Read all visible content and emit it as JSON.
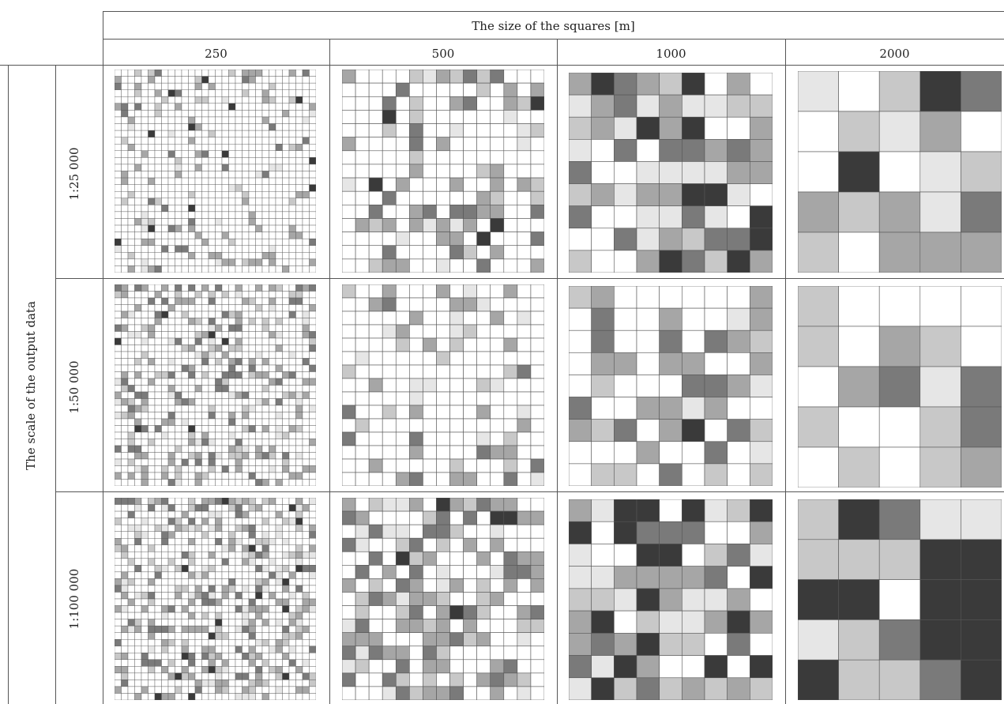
{
  "header": {
    "top_title": "The size of the squares [m]",
    "columns": [
      "250",
      "500",
      "1000",
      "2000"
    ]
  },
  "side": {
    "title": "The scale of the output data",
    "rows": [
      "1:25 000",
      "1:50 000",
      "1:100 000"
    ]
  },
  "grids": [
    {
      "row": "1:25 000",
      "col": "250",
      "n": 30,
      "seed": 11,
      "density": 0.18,
      "dark": 0.04
    },
    {
      "row": "1:25 000",
      "col": "500",
      "n": 15,
      "seed": 23,
      "density": 0.3,
      "dark": 0.04
    },
    {
      "row": "1:25 000",
      "col": "1000",
      "n": 9,
      "seed": 37,
      "density": 0.75,
      "dark": 0.2
    },
    {
      "row": "1:25 000",
      "col": "2000",
      "n": 5,
      "seed": 41,
      "density": 0.85,
      "dark": 0.2
    },
    {
      "row": "1:50 000",
      "col": "250",
      "n": 30,
      "seed": 53,
      "density": 0.3,
      "dark": 0.05
    },
    {
      "row": "1:50 000",
      "col": "500",
      "n": 15,
      "seed": 61,
      "density": 0.3,
      "dark": 0.03
    },
    {
      "row": "1:50 000",
      "col": "1000",
      "n": 9,
      "seed": 71,
      "density": 0.55,
      "dark": 0.03
    },
    {
      "row": "1:50 000",
      "col": "2000",
      "n": 5,
      "seed": 83,
      "density": 0.6,
      "dark": 0.0
    },
    {
      "row": "1:100 000",
      "col": "250",
      "n": 30,
      "seed": 97,
      "density": 0.38,
      "dark": 0.06
    },
    {
      "row": "1:100 000",
      "col": "500",
      "n": 15,
      "seed": 101,
      "density": 0.55,
      "dark": 0.08
    },
    {
      "row": "1:100 000",
      "col": "1000",
      "n": 9,
      "seed": 113,
      "density": 0.8,
      "dark": 0.18
    },
    {
      "row": "1:100 000",
      "col": "2000",
      "n": 5,
      "seed": 127,
      "density": 0.9,
      "dark": 0.4
    }
  ],
  "colors": {
    "line": "#555555",
    "shades": [
      "#ffffff",
      "#e6e6e6",
      "#c8c8c8",
      "#a6a6a6",
      "#7a7a7a",
      "#3a3a3a"
    ]
  }
}
